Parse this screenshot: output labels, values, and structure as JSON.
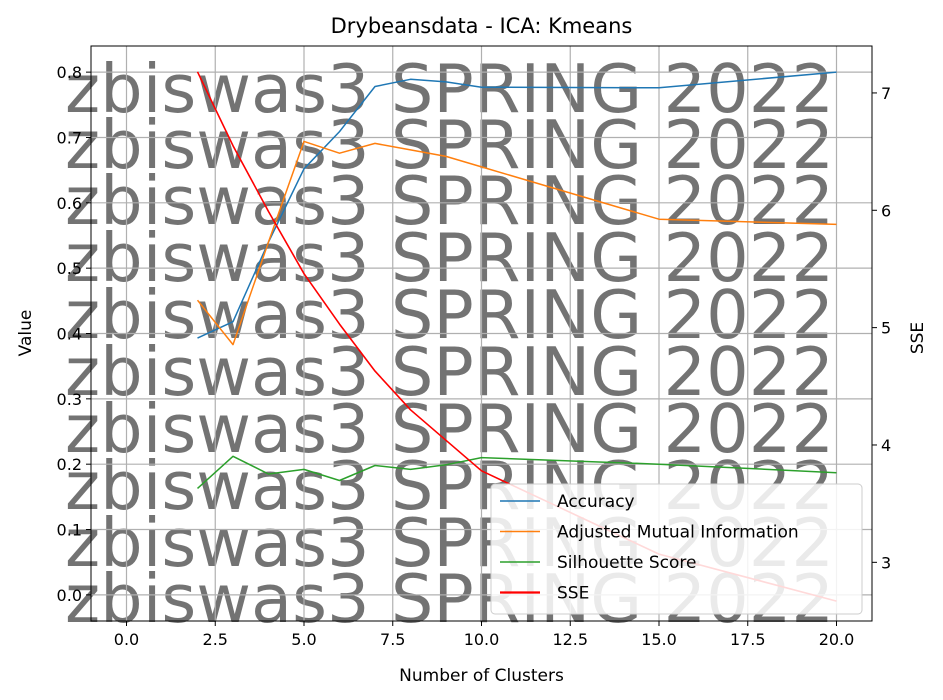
{
  "chart_data": {
    "type": "line",
    "title": "Drybeansdata - ICA: Kmeans",
    "xlabel": "Number of Clusters",
    "ylabel": "Value",
    "y2label": "SSE",
    "xlim": [
      -1,
      21
    ],
    "ylim": [
      -0.04,
      0.84
    ],
    "y2lim": [
      2.5,
      7.4
    ],
    "xticks": [
      "0.0",
      "2.5",
      "5.0",
      "7.5",
      "10.0",
      "12.5",
      "15.0",
      "17.5",
      "20.0"
    ],
    "yticks": [
      "0.0",
      "0.1",
      "0.2",
      "0.3",
      "0.4",
      "0.5",
      "0.6",
      "0.7",
      "0.8"
    ],
    "y2ticks": [
      "3",
      "4",
      "5",
      "6",
      "7"
    ],
    "grid": true,
    "legend_position": "bottom-right",
    "watermark": "zbiswas3 SPRING 2022",
    "x": [
      2,
      3,
      4,
      5,
      6,
      7,
      8,
      9,
      10,
      15,
      20
    ],
    "series": [
      {
        "name": "Accuracy",
        "axis": "left",
        "color": "#1f77b4",
        "values": [
          0.393,
          0.418,
          0.54,
          0.652,
          0.709,
          0.778,
          0.789,
          0.785,
          0.777,
          0.776,
          0.8
        ]
      },
      {
        "name": "Adjusted Mutual Information",
        "axis": "left",
        "color": "#ff7f0e",
        "values": [
          0.451,
          0.383,
          0.54,
          0.694,
          0.676,
          0.691,
          0.681,
          0.671,
          0.655,
          0.575,
          0.567
        ]
      },
      {
        "name": "Silhouette Score",
        "axis": "left",
        "color": "#2ca02c",
        "values": [
          0.163,
          0.212,
          0.185,
          0.192,
          0.175,
          0.198,
          0.192,
          0.199,
          0.21,
          0.2,
          0.187
        ]
      },
      {
        "name": "SSE",
        "axis": "right",
        "color": "#ff0000",
        "values": [
          7.18,
          6.55,
          5.99,
          5.46,
          5.03,
          4.63,
          4.3,
          4.04,
          3.78,
          3.07,
          2.67
        ]
      }
    ]
  }
}
